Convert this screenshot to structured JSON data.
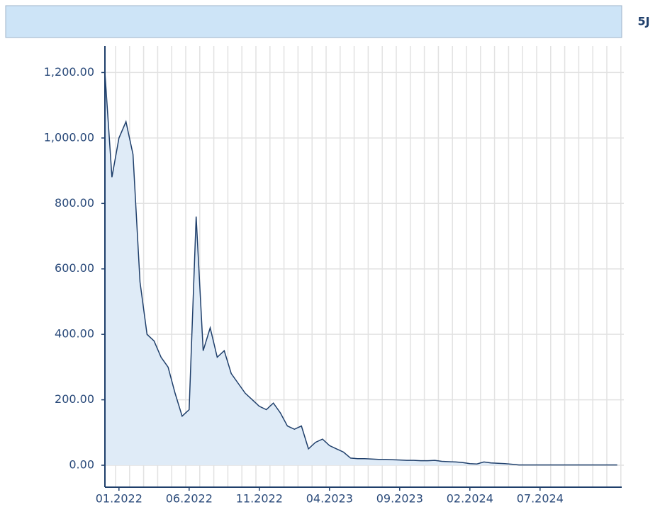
{
  "toolbar": {
    "tab": "5J"
  },
  "chart_data": {
    "type": "area",
    "categories": [
      null,
      null,
      "01.2022",
      null,
      null,
      null,
      null,
      null,
      null,
      null,
      null,
      null,
      "06.2022",
      null,
      null,
      null,
      null,
      null,
      null,
      null,
      null,
      null,
      "11.2022",
      null,
      null,
      null,
      null,
      null,
      null,
      null,
      null,
      null,
      "04.2023",
      null,
      null,
      null,
      null,
      null,
      null,
      null,
      null,
      null,
      "09.2023",
      null,
      null,
      null,
      null,
      null,
      null,
      null,
      null,
      null,
      "02.2024",
      null,
      null,
      null,
      null,
      null,
      null,
      null,
      null,
      null,
      "07.2024",
      null,
      null,
      null,
      null,
      null,
      null,
      null,
      null,
      null,
      null,
      null
    ],
    "values": [
      1200,
      880,
      1000,
      1050,
      950,
      560,
      400,
      380,
      330,
      300,
      220,
      150,
      170,
      760,
      350,
      420,
      330,
      350,
      280,
      250,
      220,
      200,
      180,
      170,
      190,
      160,
      120,
      110,
      120,
      50,
      70,
      80,
      60,
      50,
      40,
      22,
      20,
      20,
      19,
      18,
      18,
      17,
      16,
      15,
      15,
      14,
      14,
      15,
      12,
      11,
      10,
      8,
      5,
      4,
      10,
      7,
      6,
      5,
      3,
      1,
      1,
      1,
      1,
      1,
      1,
      1,
      1,
      1,
      1,
      1,
      1,
      1,
      1,
      1
    ],
    "color": "#1f3f6b",
    "fill": "#dfebf7",
    "ylim": [
      -67,
      1281
    ],
    "yticks": [
      {
        "value": 0,
        "label": "0.00"
      },
      {
        "value": 200,
        "label": "200.00"
      },
      {
        "value": 400,
        "label": "400.00"
      },
      {
        "value": 600,
        "label": "600.00"
      },
      {
        "value": 800,
        "label": "800.00"
      },
      {
        "value": 1000,
        "label": "1,000.00"
      },
      {
        "value": 1200,
        "label": "1,200.00"
      }
    ],
    "grid": true
  }
}
